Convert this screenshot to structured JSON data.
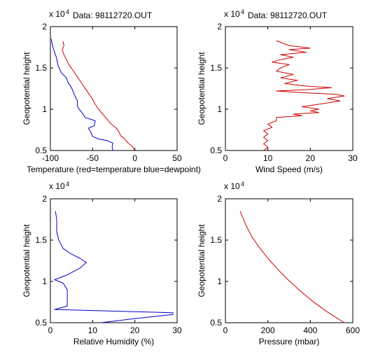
{
  "chart_data": [
    {
      "type": "line",
      "title": "Data: 98112720.OUT",
      "xlabel": "Temperature (red=temperature blue=dewpoint)",
      "ylabel": "Geopotential height",
      "y_multiplier": "x 10",
      "y_multiplier_exponent": "4",
      "xlim": [
        -100,
        50
      ],
      "ylim": [
        5000,
        20000
      ],
      "xticks": [
        -100,
        -50,
        0,
        50
      ],
      "yticks": [
        5000,
        10000,
        15000,
        20000
      ],
      "yticklabels": [
        "0.5",
        "1",
        "1.5",
        "2"
      ],
      "grid": false,
      "series": [
        {
          "color": "#cc0000",
          "x": [
            0,
            -3,
            -8,
            -12,
            -17,
            -19,
            -22,
            -28,
            -33,
            -38,
            -43,
            -47,
            -50,
            -54,
            -58,
            -62,
            -66,
            -70,
            -74,
            -78,
            -81,
            -84,
            -86,
            -84,
            -85
          ],
          "y": [
            5000,
            5500,
            5900,
            6400,
            6800,
            7300,
            7700,
            8200,
            8800,
            9400,
            10000,
            10600,
            11200,
            11800,
            12400,
            13000,
            13600,
            14200,
            14800,
            15400,
            16000,
            16600,
            17200,
            17700,
            18200
          ]
        },
        {
          "color": "#0000cc",
          "x": [
            -26,
            -27,
            -26,
            -33,
            -43,
            -50,
            -52,
            -55,
            -48,
            -47,
            -59,
            -62,
            -66,
            -68,
            -68,
            -71,
            -73,
            -75,
            -79,
            -81,
            -87,
            -91,
            -93,
            -97,
            -99
          ],
          "y": [
            5000,
            5400,
            5900,
            6200,
            6400,
            6700,
            7200,
            7700,
            8000,
            8600,
            9000,
            9500,
            10000,
            10400,
            11000,
            11600,
            12100,
            12600,
            13200,
            13800,
            14400,
            15300,
            16300,
            17500,
            18500
          ]
        }
      ]
    },
    {
      "type": "line",
      "title": "Data: 98112720.OUT",
      "xlabel": "Wind Speed (m/s)",
      "ylabel": "Geopotential height",
      "y_multiplier": "x 10",
      "y_multiplier_exponent": "4",
      "xlim": [
        0,
        30
      ],
      "ylim": [
        5000,
        20000
      ],
      "xticks": [
        0,
        10,
        20,
        30
      ],
      "yticks": [
        5000,
        10000,
        15000,
        20000
      ],
      "yticklabels": [
        "0.5",
        "1",
        "1.5",
        "2"
      ],
      "grid": false,
      "series": [
        {
          "color": "#cc0000",
          "x": [
            9,
            10,
            9,
            10,
            9,
            10,
            9,
            11,
            10,
            12,
            12,
            18,
            16,
            22,
            20,
            22,
            18,
            22,
            27,
            24,
            28,
            26,
            18,
            12,
            20,
            25,
            19,
            14,
            17,
            13,
            16,
            12,
            13,
            15,
            11,
            13,
            16,
            13,
            19,
            15,
            20,
            15,
            12
          ],
          "y": [
            5000,
            5400,
            5800,
            6200,
            6600,
            7000,
            7400,
            7800,
            8200,
            8600,
            9000,
            9200,
            9400,
            9600,
            9800,
            10000,
            10300,
            10600,
            11000,
            11300,
            11600,
            11800,
            12000,
            12200,
            12400,
            12600,
            12800,
            13100,
            13500,
            13800,
            14200,
            14600,
            15000,
            15400,
            15700,
            16000,
            16300,
            16600,
            16900,
            17200,
            17400,
            17700,
            18300
          ]
        }
      ]
    },
    {
      "type": "line",
      "xlabel": "Relative Humidity (%)",
      "ylabel": "Geopotential height",
      "y_multiplier": "x 10",
      "y_multiplier_exponent": "4",
      "xlim": [
        0,
        30
      ],
      "ylim": [
        5000,
        20000
      ],
      "xticks": [
        0,
        10,
        20,
        30
      ],
      "yticks": [
        5000,
        10000,
        15000,
        20000
      ],
      "yticklabels": [
        "0.5",
        "1",
        "1.5",
        "2"
      ],
      "grid": false,
      "series": [
        {
          "color": "#0000cc",
          "x": [
            12,
            20,
            29,
            29,
            1,
            4,
            4,
            4,
            3,
            1,
            4,
            7,
            8.5,
            7,
            5,
            3,
            2,
            1.5,
            1.5,
            1.2
          ],
          "y": [
            5000,
            5500,
            6000,
            6200,
            6600,
            7000,
            8000,
            9000,
            9800,
            10200,
            10800,
            11600,
            12300,
            12800,
            13300,
            14000,
            15000,
            16000,
            17500,
            18500
          ]
        }
      ]
    },
    {
      "type": "line",
      "xlabel": "Pressure (mbar)",
      "ylabel": "Geopotential height",
      "y_multiplier": "x 10",
      "y_multiplier_exponent": "4",
      "xlim": [
        0,
        600
      ],
      "ylim": [
        5000,
        20000
      ],
      "xticks": [
        0,
        200,
        400,
        600
      ],
      "yticks": [
        5000,
        10000,
        15000,
        20000
      ],
      "yticklabels": [
        "0.5",
        "1",
        "1.5",
        "2"
      ],
      "grid": false,
      "series": [
        {
          "color": "#cc0000",
          "x": [
            560,
            480,
            410,
            350,
            295,
            245,
            200,
            160,
            125,
            95,
            70
          ],
          "y": [
            5000,
            6300,
            7600,
            8900,
            10200,
            11500,
            12800,
            14100,
            15400,
            16900,
            18500
          ]
        }
      ]
    }
  ]
}
